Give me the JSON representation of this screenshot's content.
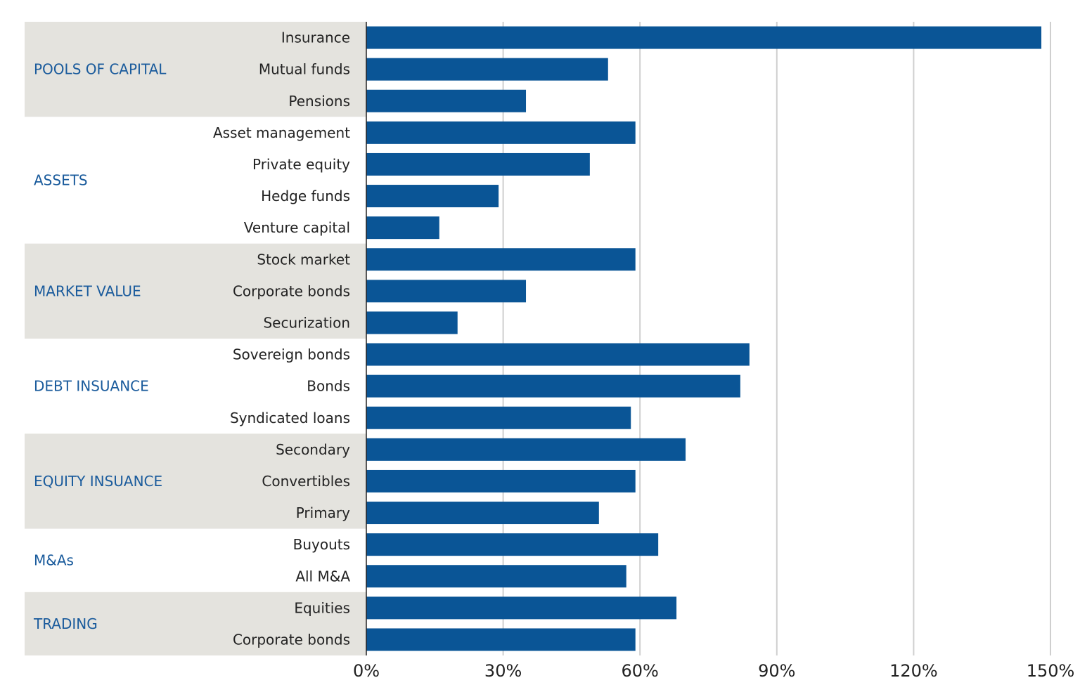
{
  "chart_data": {
    "type": "bar",
    "orientation": "horizontal",
    "title": "",
    "xlabel": "",
    "ylabel": "",
    "xlim": [
      0,
      150
    ],
    "xticks": [
      "0%",
      "30%",
      "60%",
      "90%",
      "120%",
      "150%"
    ],
    "xtick_values": [
      0,
      30,
      60,
      90,
      120,
      150
    ],
    "grid": true,
    "colors": {
      "bar": "#0a5596",
      "group_label": "#1a5b9c",
      "band": "#e4e3de",
      "grid": "#cfcfcf"
    },
    "groups": [
      {
        "label": "POOLS OF CAPITAL",
        "shaded": true,
        "categories": [
          "Insurance",
          "Mutual funds",
          "Pensions"
        ],
        "values": [
          148,
          53,
          35
        ]
      },
      {
        "label": "ASSETS",
        "shaded": false,
        "categories": [
          "Asset management",
          "Private equity",
          "Hedge funds",
          "Venture capital"
        ],
        "values": [
          59,
          49,
          29,
          16
        ]
      },
      {
        "label": "MARKET VALUE",
        "shaded": true,
        "categories": [
          "Stock market",
          "Corporate bonds",
          "Securization"
        ],
        "values": [
          59,
          35,
          20
        ]
      },
      {
        "label": "DEBT INSUANCE",
        "shaded": false,
        "categories": [
          "Sovereign bonds",
          "Bonds",
          "Syndicated loans"
        ],
        "values": [
          84,
          82,
          58
        ]
      },
      {
        "label": "EQUITY INSUANCE",
        "shaded": true,
        "categories": [
          "Secondary",
          "Convertibles",
          "Primary"
        ],
        "values": [
          70,
          59,
          51
        ]
      },
      {
        "label": "M&As",
        "shaded": false,
        "categories": [
          "Buyouts",
          "All M&A"
        ],
        "values": [
          64,
          57
        ]
      },
      {
        "label": "TRADING",
        "shaded": true,
        "categories": [
          "Equities",
          "Corporate bonds"
        ],
        "values": [
          68,
          59
        ]
      }
    ]
  }
}
